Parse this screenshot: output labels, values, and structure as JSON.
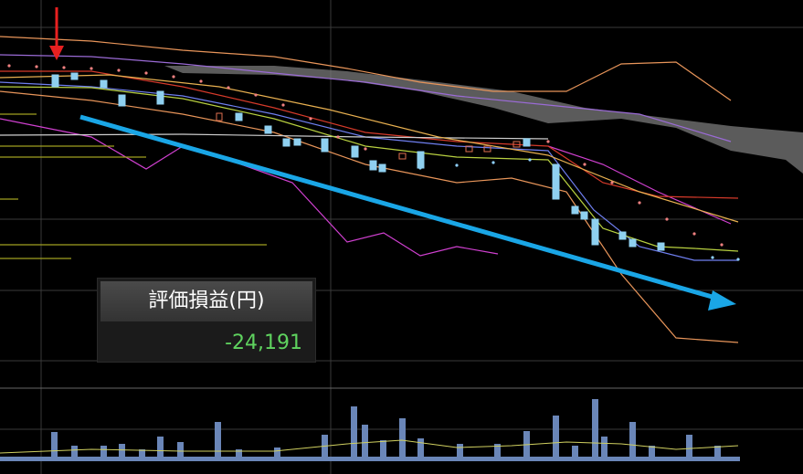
{
  "panel": {
    "title": "評価損益(円)",
    "value": "-24,191"
  }
}
